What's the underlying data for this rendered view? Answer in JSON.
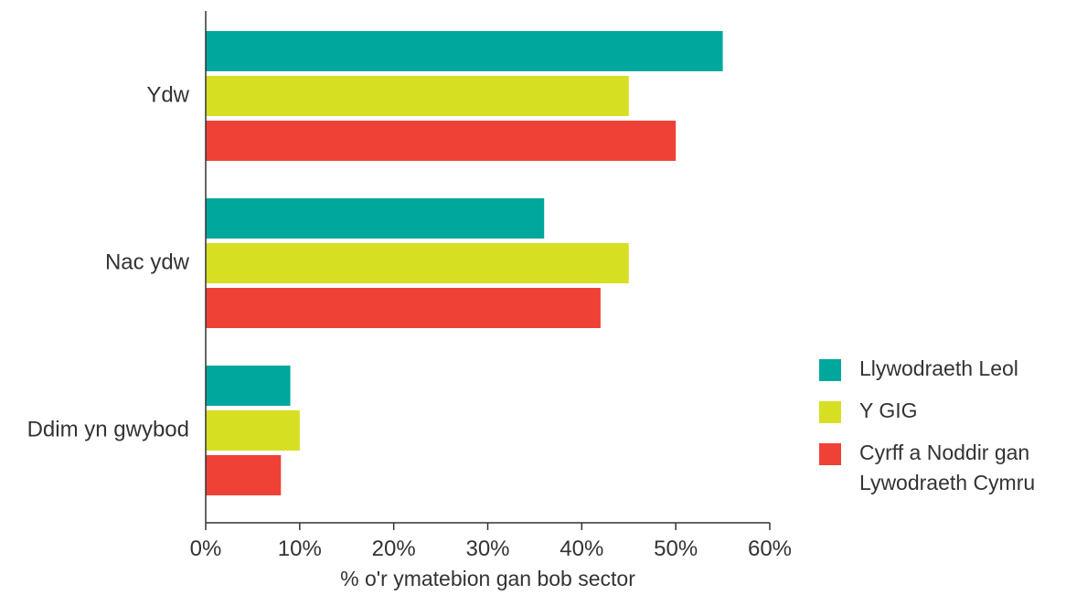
{
  "chart_data": {
    "type": "bar",
    "orientation": "horizontal",
    "categories": [
      "Ydw",
      "Nac ydw",
      "Ddim yn gwybod"
    ],
    "series": [
      {
        "name": "Llywodraeth Leol",
        "color": "#00a79d",
        "values": [
          55,
          36,
          9
        ]
      },
      {
        "name": "Y GIG",
        "color": "#d7df23",
        "values": [
          45,
          45,
          10
        ]
      },
      {
        "name": "Cyrff a Noddir gan Lywodraeth Cymru",
        "color": "#ef4136",
        "values": [
          50,
          42,
          8
        ]
      }
    ],
    "xlabel": "% o'r ymatebion gan bob sector",
    "xlim": [
      0,
      60
    ],
    "xticks": [
      "0%",
      "10%",
      "20%",
      "30%",
      "40%",
      "50%",
      "60%"
    ],
    "grid": false,
    "legend_position": "right"
  },
  "legend": {
    "items": [
      {
        "lines": [
          "Llywodraeth Leol"
        ]
      },
      {
        "lines": [
          "Y GIG"
        ]
      },
      {
        "lines": [
          "Cyrff a Noddir gan",
          "Lywodraeth Cymru"
        ]
      }
    ]
  }
}
